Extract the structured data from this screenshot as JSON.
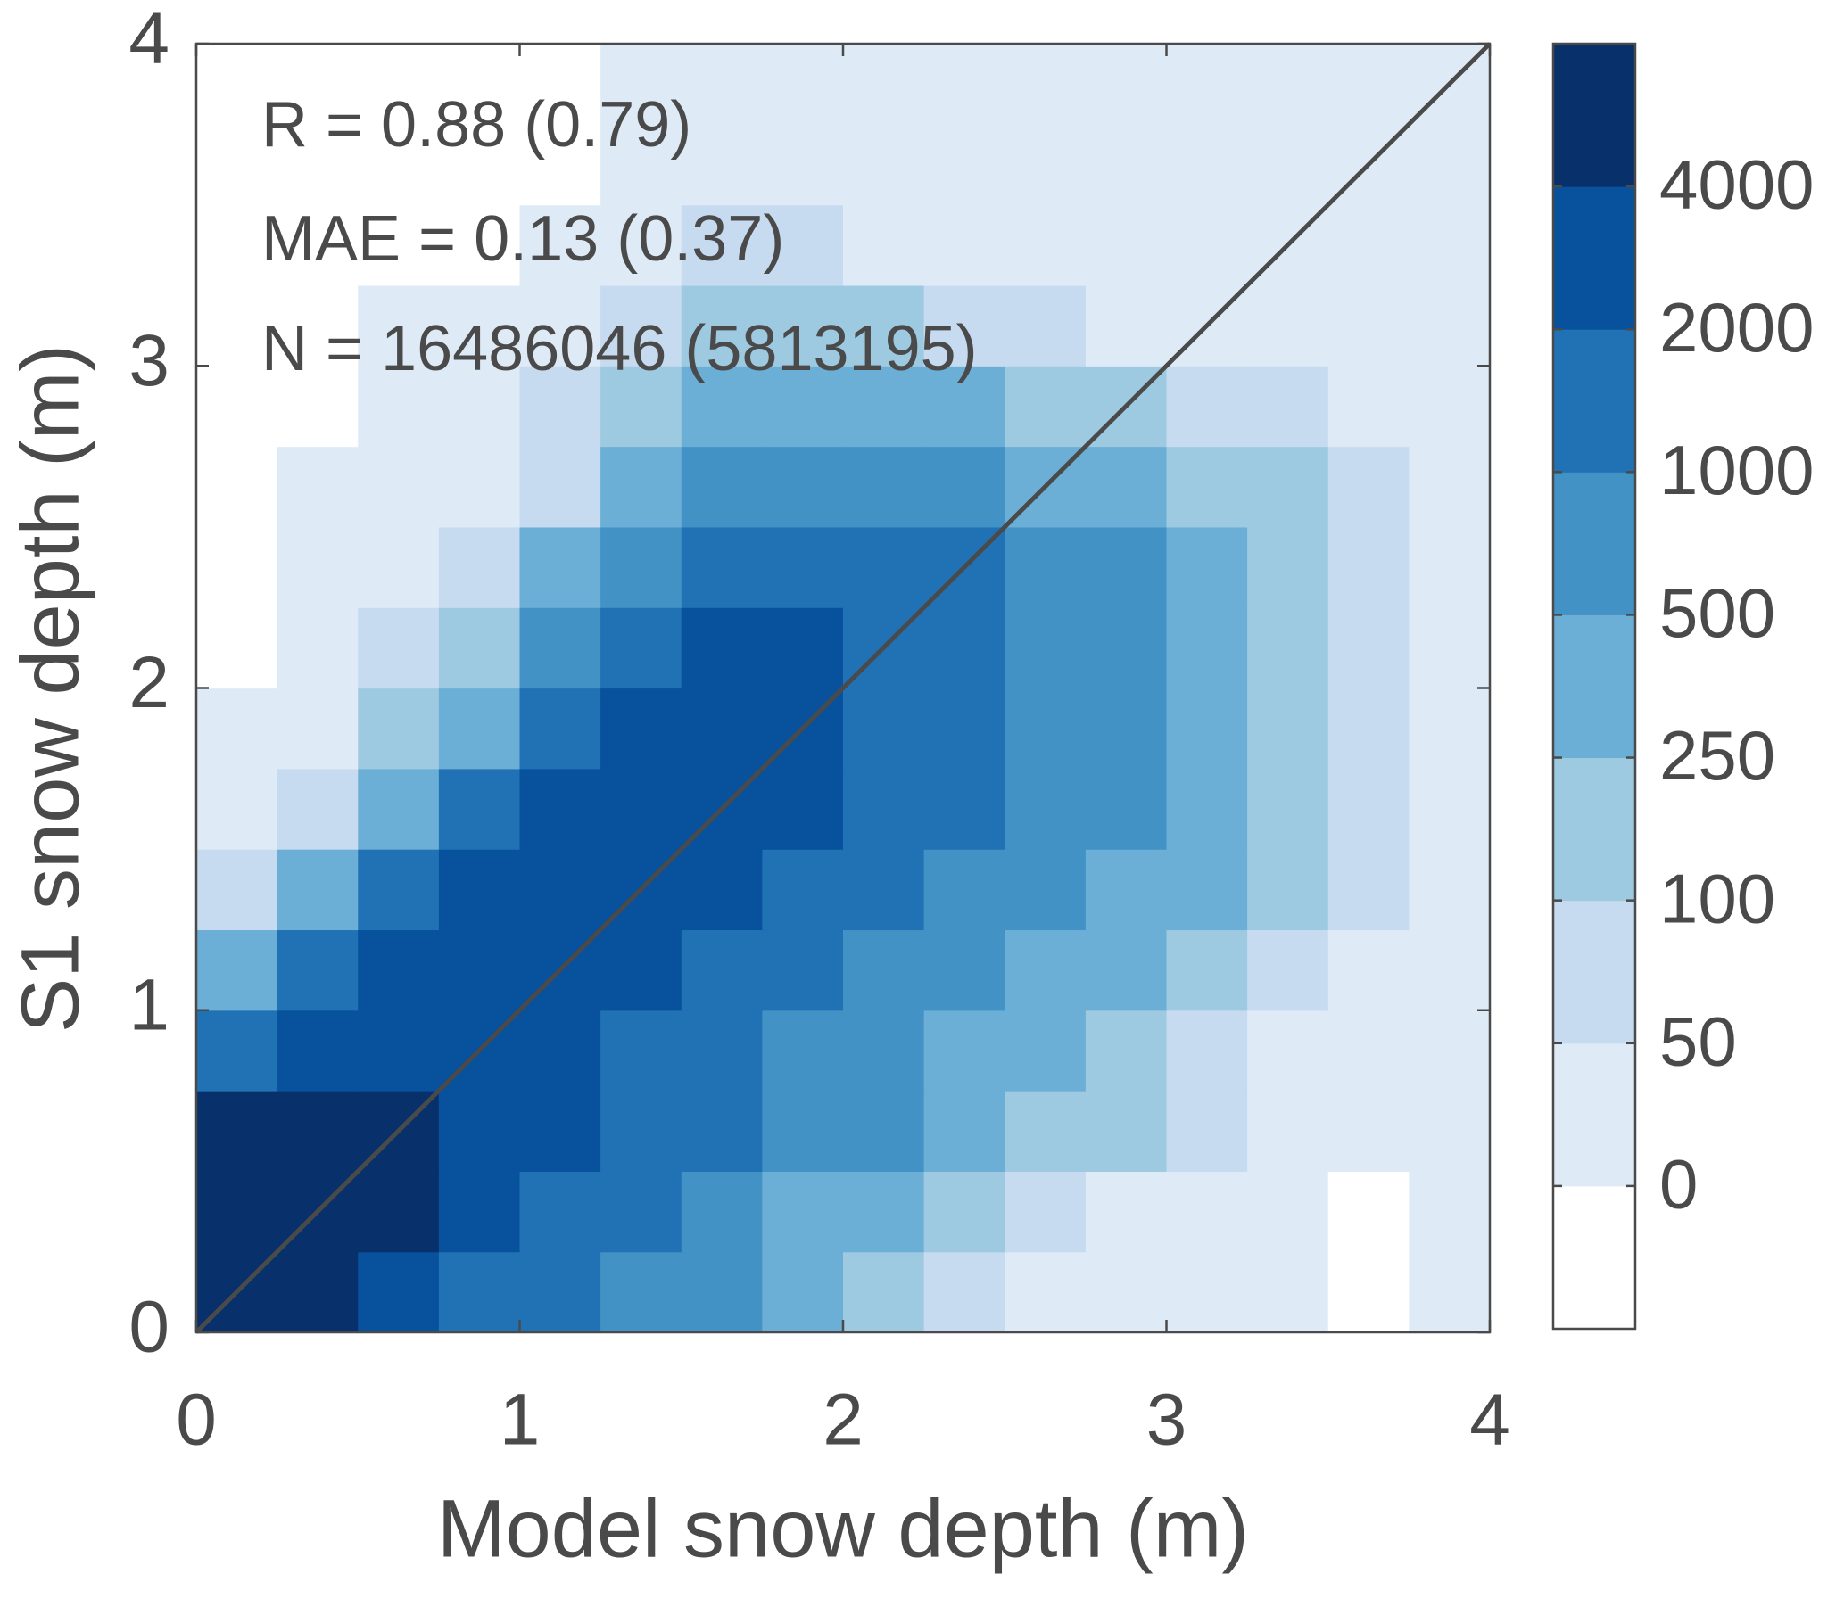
{
  "chart_data": {
    "type": "hist2d",
    "xlabel": "Model snow depth (m)",
    "ylabel": "S1 snow depth (m)",
    "annotations": [
      "R = 0.88 (0.79)",
      "MAE = 0.13 (0.37)",
      "N = 16486046 (5813195)"
    ],
    "xlim": [
      0,
      4
    ],
    "ylim": [
      0,
      4
    ],
    "xticks": [
      0,
      1,
      2,
      3,
      4
    ],
    "yticks": [
      0,
      1,
      2,
      3,
      4
    ],
    "xbins": [
      0,
      0.25,
      0.5,
      0.75,
      1,
      1.25,
      1.5,
      1.75,
      2,
      2.25,
      2.5,
      2.75,
      3,
      3.25,
      3.5,
      3.75,
      4
    ],
    "ybins": [
      0,
      0.25,
      0.5,
      0.75,
      1,
      1.25,
      1.5,
      1.75,
      2,
      2.25,
      2.5,
      2.75,
      3,
      3.25,
      3.5,
      3.75,
      4
    ],
    "counts": [
      [
        6000,
        6000,
        3000,
        1500,
        1500,
        750,
        750,
        375,
        175,
        75,
        20,
        20,
        20,
        20,
        null,
        20
      ],
      [
        6000,
        6000,
        6000,
        3000,
        1500,
        1500,
        750,
        375,
        375,
        175,
        75,
        20,
        20,
        20,
        null,
        20
      ],
      [
        6000,
        6000,
        6000,
        3000,
        3000,
        1500,
        1500,
        750,
        750,
        375,
        175,
        175,
        75,
        20,
        20,
        20
      ],
      [
        1500,
        3000,
        3000,
        3000,
        3000,
        1500,
        1500,
        750,
        750,
        375,
        375,
        175,
        75,
        20,
        20,
        20
      ],
      [
        375,
        1500,
        3000,
        3000,
        3000,
        3000,
        1500,
        1500,
        750,
        750,
        375,
        375,
        175,
        75,
        20,
        20
      ],
      [
        75,
        375,
        1500,
        3000,
        3000,
        3000,
        3000,
        1500,
        1500,
        750,
        750,
        375,
        375,
        175,
        75,
        20
      ],
      [
        20,
        75,
        375,
        1500,
        3000,
        3000,
        3000,
        3000,
        1500,
        1500,
        750,
        750,
        375,
        175,
        75,
        20
      ],
      [
        20,
        20,
        175,
        375,
        1500,
        3000,
        3000,
        3000,
        1500,
        1500,
        750,
        750,
        375,
        175,
        75,
        20
      ],
      [
        null,
        20,
        75,
        175,
        750,
        1500,
        3000,
        3000,
        1500,
        1500,
        750,
        750,
        375,
        175,
        75,
        20
      ],
      [
        null,
        20,
        20,
        75,
        375,
        750,
        1500,
        1500,
        1500,
        1500,
        750,
        750,
        375,
        175,
        75,
        20
      ],
      [
        null,
        20,
        20,
        20,
        75,
        375,
        750,
        750,
        750,
        750,
        375,
        375,
        175,
        175,
        75,
        20
      ],
      [
        null,
        null,
        20,
        20,
        75,
        175,
        375,
        375,
        375,
        375,
        175,
        175,
        75,
        75,
        20,
        20
      ],
      [
        null,
        null,
        20,
        20,
        20,
        75,
        175,
        175,
        175,
        75,
        75,
        20,
        20,
        20,
        20,
        20
      ],
      [
        null,
        null,
        null,
        null,
        20,
        20,
        75,
        75,
        20,
        20,
        20,
        20,
        20,
        20,
        20,
        20
      ],
      [
        null,
        null,
        null,
        null,
        null,
        20,
        20,
        20,
        20,
        20,
        20,
        20,
        20,
        20,
        20,
        20
      ],
      [
        null,
        null,
        null,
        null,
        null,
        20,
        20,
        20,
        20,
        20,
        20,
        20,
        20,
        20,
        20,
        20
      ]
    ],
    "colorbar": {
      "ticks": [
        0,
        50,
        100,
        250,
        500,
        1000,
        2000,
        4000
      ],
      "colors": [
        "#deebf7",
        "#c6dbef",
        "#9ecae1",
        "#6baed6",
        "#4292c6",
        "#2171b5",
        "#08519c",
        "#08306b"
      ],
      "empty_color": "#ffffff"
    },
    "line_color": "#4a4a4a"
  }
}
